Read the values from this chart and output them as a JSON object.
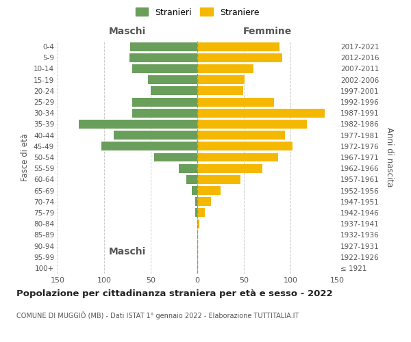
{
  "age_groups": [
    "100+",
    "95-99",
    "90-94",
    "85-89",
    "80-84",
    "75-79",
    "70-74",
    "65-69",
    "60-64",
    "55-59",
    "50-54",
    "45-49",
    "40-44",
    "35-39",
    "30-34",
    "25-29",
    "20-24",
    "15-19",
    "10-14",
    "5-9",
    "0-4"
  ],
  "birth_years": [
    "≤ 1921",
    "1922-1926",
    "1927-1931",
    "1932-1936",
    "1937-1941",
    "1942-1946",
    "1947-1951",
    "1952-1956",
    "1957-1961",
    "1962-1966",
    "1967-1971",
    "1972-1976",
    "1977-1981",
    "1982-1986",
    "1987-1991",
    "1992-1996",
    "1997-2001",
    "2002-2006",
    "2007-2011",
    "2012-2016",
    "2017-2021"
  ],
  "maschi": [
    0,
    0,
    0,
    0,
    0,
    2,
    2,
    6,
    12,
    20,
    46,
    103,
    90,
    127,
    70,
    70,
    50,
    53,
    70,
    73,
    72
  ],
  "femmine": [
    1,
    1,
    1,
    1,
    2,
    8,
    15,
    25,
    46,
    70,
    87,
    102,
    94,
    118,
    137,
    82,
    49,
    51,
    60,
    91,
    88
  ],
  "maschi_color": "#6a9e5b",
  "femmine_color": "#f5b800",
  "background_color": "#ffffff",
  "grid_color": "#cccccc",
  "title": "Popolazione per cittadinanza straniera per età e sesso - 2022",
  "subtitle": "COMUNE DI MUGGIÒ (MB) - Dati ISTAT 1° gennaio 2022 - Elaborazione TUTTITALIA.IT",
  "ylabel_left": "Fasce di età",
  "ylabel_right": "Anni di nascita",
  "xlabel_maschi": "Maschi",
  "xlabel_femmine": "Femmine",
  "legend_maschi": "Stranieri",
  "legend_femmine": "Straniere",
  "xlim": 150,
  "bar_height": 0.8
}
